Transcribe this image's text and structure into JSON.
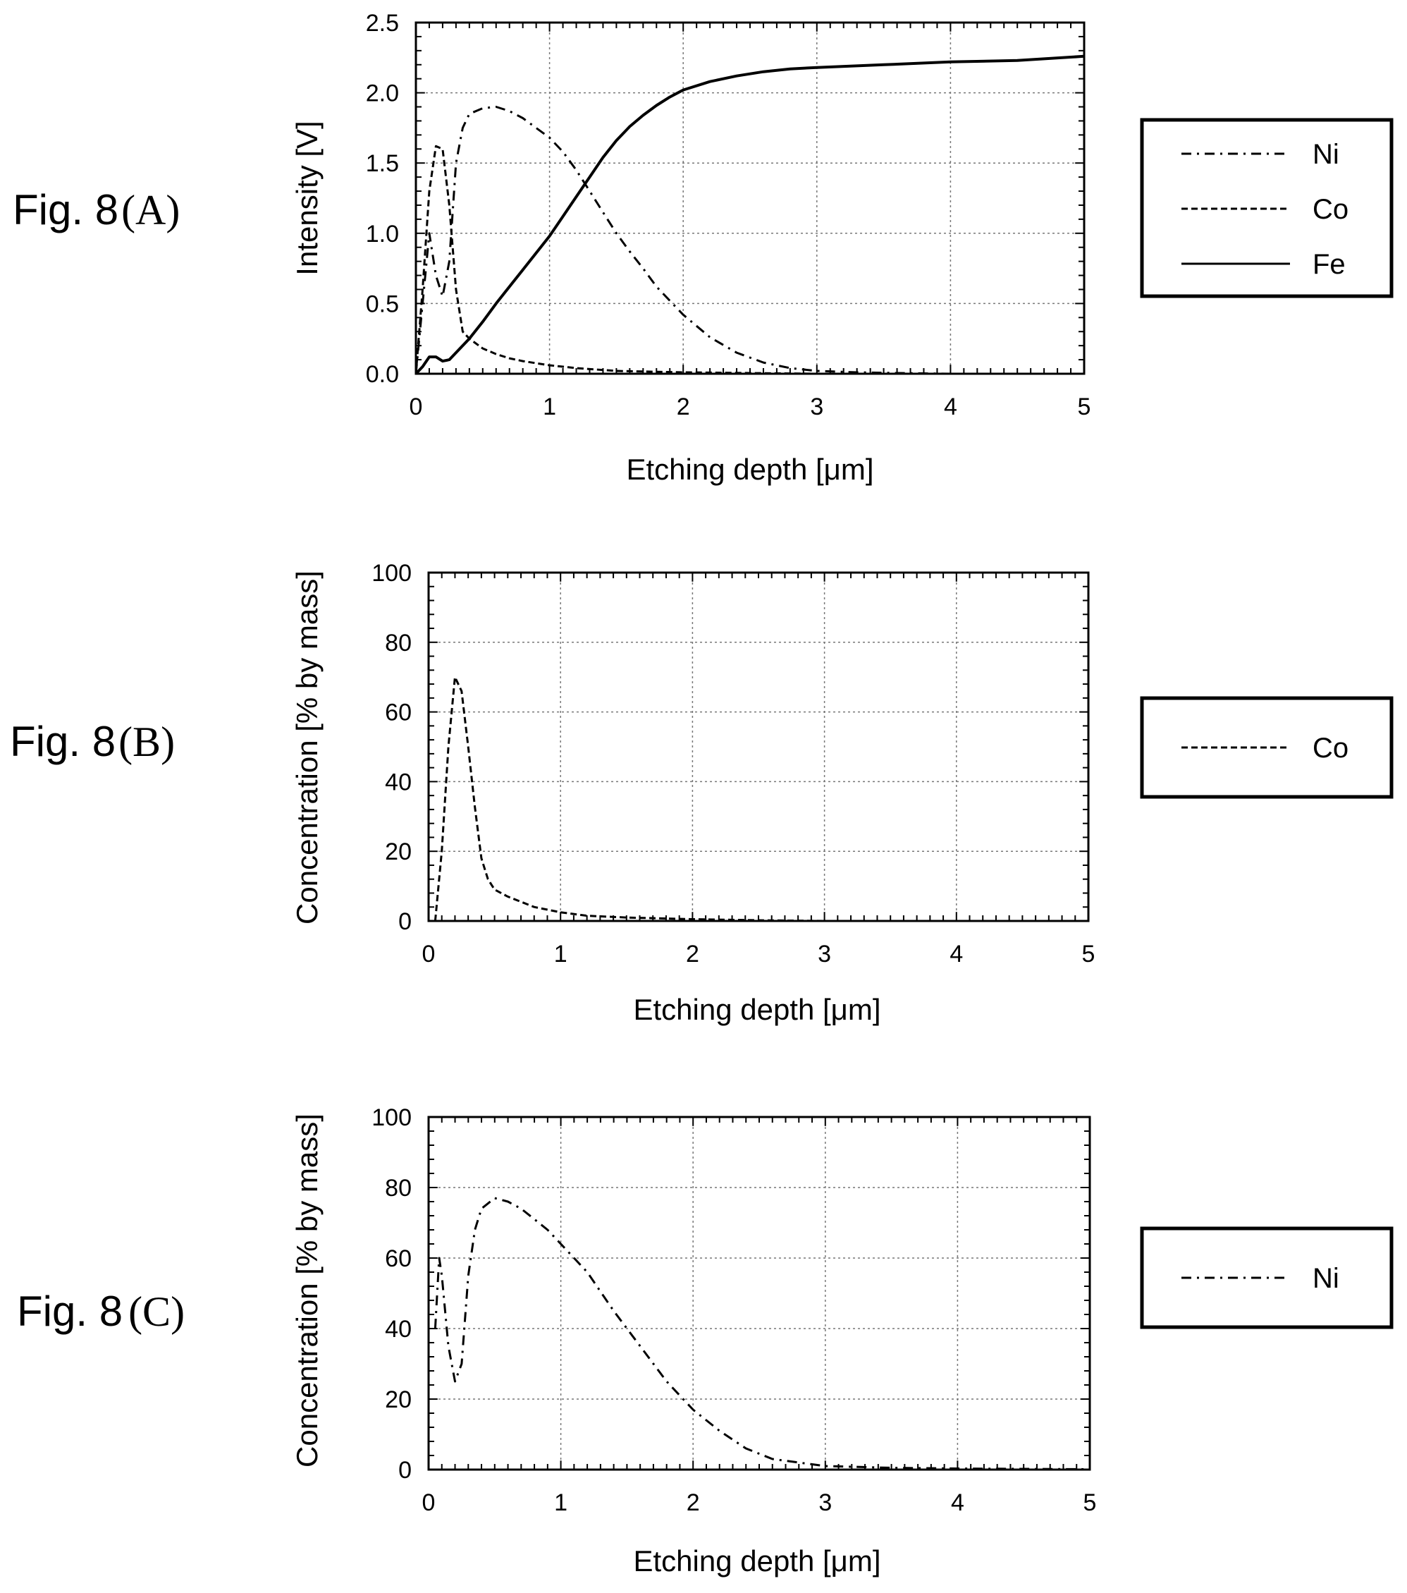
{
  "figures": [
    {
      "label_main": "Fig. 8",
      "label_suffix": "(A)",
      "legend": [
        {
          "name": "Ni",
          "style": "dashdot"
        },
        {
          "name": "Co",
          "style": "dashed"
        },
        {
          "name": "Fe",
          "style": "solid"
        }
      ]
    },
    {
      "label_main": "Fig. 8",
      "label_suffix": "(B)",
      "legend": [
        {
          "name": "Co",
          "style": "dashed"
        }
      ]
    },
    {
      "label_main": "Fig. 8",
      "label_suffix": "(C)",
      "legend": [
        {
          "name": "Ni",
          "style": "dashdot"
        }
      ]
    }
  ],
  "chart_data": [
    {
      "type": "line",
      "xlabel": "Etching depth [μm]",
      "ylabel": "Intensity [V]",
      "xlim": [
        0,
        5
      ],
      "ylim": [
        0,
        2.5
      ],
      "xticks": [
        "0",
        "1",
        "2",
        "3",
        "4",
        "5"
      ],
      "yticks": [
        "0.0",
        "0.5",
        "1.0",
        "1.5",
        "2.0",
        "2.5"
      ],
      "grid": true,
      "legend_position": "right",
      "series": [
        {
          "name": "Ni",
          "style": "dashdot",
          "x": [
            0,
            0.05,
            0.1,
            0.15,
            0.2,
            0.25,
            0.3,
            0.35,
            0.4,
            0.5,
            0.6,
            0.7,
            0.8,
            0.9,
            1.0,
            1.1,
            1.2,
            1.3,
            1.4,
            1.5,
            1.6,
            1.7,
            1.8,
            1.9,
            2.0,
            2.2,
            2.4,
            2.6,
            2.8,
            3.0,
            3.3,
            3.6,
            4.0,
            4.5,
            5.0
          ],
          "y": [
            0.0,
            0.5,
            1.0,
            0.7,
            0.55,
            0.8,
            1.5,
            1.75,
            1.85,
            1.89,
            1.9,
            1.87,
            1.82,
            1.75,
            1.68,
            1.58,
            1.45,
            1.3,
            1.15,
            1.0,
            0.87,
            0.75,
            0.62,
            0.52,
            0.42,
            0.26,
            0.15,
            0.08,
            0.04,
            0.02,
            0.01,
            0.005,
            0.0,
            0.0,
            0.0
          ]
        },
        {
          "name": "Co",
          "style": "dashed",
          "x": [
            0,
            0.05,
            0.1,
            0.15,
            0.2,
            0.25,
            0.3,
            0.35,
            0.4,
            0.5,
            0.6,
            0.7,
            0.8,
            1.0,
            1.2,
            1.5,
            2.0,
            2.5,
            3.0,
            4.0,
            5.0
          ],
          "y": [
            0.0,
            0.6,
            1.3,
            1.62,
            1.6,
            1.2,
            0.6,
            0.3,
            0.25,
            0.18,
            0.14,
            0.11,
            0.09,
            0.06,
            0.04,
            0.02,
            0.01,
            0.005,
            0.0,
            0.0,
            0.0
          ]
        },
        {
          "name": "Fe",
          "style": "solid",
          "x": [
            0,
            0.05,
            0.1,
            0.15,
            0.2,
            0.25,
            0.3,
            0.4,
            0.5,
            0.6,
            0.7,
            0.8,
            0.9,
            1.0,
            1.1,
            1.2,
            1.3,
            1.4,
            1.5,
            1.6,
            1.7,
            1.8,
            1.9,
            2.0,
            2.2,
            2.4,
            2.6,
            2.8,
            3.0,
            3.5,
            4.0,
            4.5,
            5.0
          ],
          "y": [
            0.0,
            0.05,
            0.12,
            0.12,
            0.09,
            0.1,
            0.15,
            0.25,
            0.37,
            0.5,
            0.62,
            0.74,
            0.86,
            0.98,
            1.12,
            1.26,
            1.4,
            1.54,
            1.66,
            1.76,
            1.84,
            1.91,
            1.97,
            2.02,
            2.08,
            2.12,
            2.15,
            2.17,
            2.18,
            2.2,
            2.22,
            2.23,
            2.26
          ]
        }
      ]
    },
    {
      "type": "line",
      "xlabel": "Etching depth [μm]",
      "ylabel": "Concentration [% by mass]",
      "xlim": [
        0,
        5
      ],
      "ylim": [
        0,
        100
      ],
      "xticks": [
        "0",
        "1",
        "2",
        "3",
        "4",
        "5"
      ],
      "yticks": [
        "0",
        "20",
        "40",
        "60",
        "80",
        "100"
      ],
      "grid": true,
      "legend_position": "right",
      "series": [
        {
          "name": "Co",
          "style": "dashed",
          "x": [
            0.05,
            0.1,
            0.15,
            0.2,
            0.25,
            0.3,
            0.35,
            0.4,
            0.45,
            0.5,
            0.6,
            0.8,
            1.0,
            1.2,
            1.5,
            2.0,
            2.5,
            3.0,
            4.0,
            5.0
          ],
          "y": [
            0,
            20,
            50,
            70,
            66,
            50,
            33,
            18,
            12,
            9,
            7,
            4,
            2.5,
            1.5,
            1,
            0.5,
            0.2,
            0,
            0,
            0
          ]
        }
      ]
    },
    {
      "type": "line",
      "xlabel": "Etching depth [μm]",
      "ylabel": "Concentration [% by mass]",
      "xlim": [
        0,
        5
      ],
      "ylim": [
        0,
        100
      ],
      "xticks": [
        "0",
        "1",
        "2",
        "3",
        "4",
        "5"
      ],
      "yticks": [
        "0",
        "20",
        "40",
        "60",
        "80",
        "100"
      ],
      "grid": true,
      "legend_position": "right",
      "series": [
        {
          "name": "Ni",
          "style": "dashdot",
          "x": [
            0.05,
            0.08,
            0.1,
            0.15,
            0.2,
            0.25,
            0.3,
            0.35,
            0.4,
            0.5,
            0.6,
            0.7,
            0.8,
            0.9,
            1.0,
            1.2,
            1.4,
            1.6,
            1.8,
            2.0,
            2.2,
            2.4,
            2.6,
            2.8,
            3.0,
            3.5,
            4.0,
            4.5,
            5.0
          ],
          "y": [
            40,
            60,
            55,
            35,
            25,
            30,
            55,
            68,
            74,
            77,
            76,
            74,
            71,
            68,
            64,
            56,
            45,
            35,
            25,
            17,
            11,
            6,
            3,
            2,
            1,
            0.5,
            0.3,
            0.2,
            0.1
          ]
        }
      ]
    }
  ]
}
